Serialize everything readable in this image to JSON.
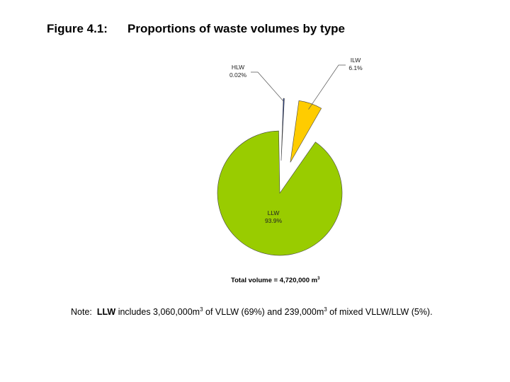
{
  "figure": {
    "number": "Figure 4.1:",
    "title": "Proportions of waste volumes by type"
  },
  "chart_data": {
    "type": "pie",
    "title": "Proportions of waste volumes by type",
    "slices": [
      {
        "name": "HLW",
        "value": 0.02,
        "value_label": "0.02%",
        "color": "#1f3c99",
        "exploded": true
      },
      {
        "name": "ILW",
        "value": 6.1,
        "value_label": "6.1%",
        "color": "#ffcc00",
        "exploded": true
      },
      {
        "name": "LLW",
        "value": 93.9,
        "value_label": "93.9%",
        "color": "#99cc00",
        "exploded": false
      }
    ],
    "labels": [
      "HLW",
      "ILW",
      "LLW"
    ]
  },
  "total": {
    "prefix": "Total volume = 4,720,000 m",
    "sup": "3"
  },
  "note": {
    "lead": "Note:",
    "bold": "LLW",
    "p1": " includes 3,060,000m",
    "sup1": "3",
    "p2": " of VLLW (69%) and 239,000m",
    "sup2": "3",
    "p3": " of mixed VLLW/LLW (5%)."
  }
}
